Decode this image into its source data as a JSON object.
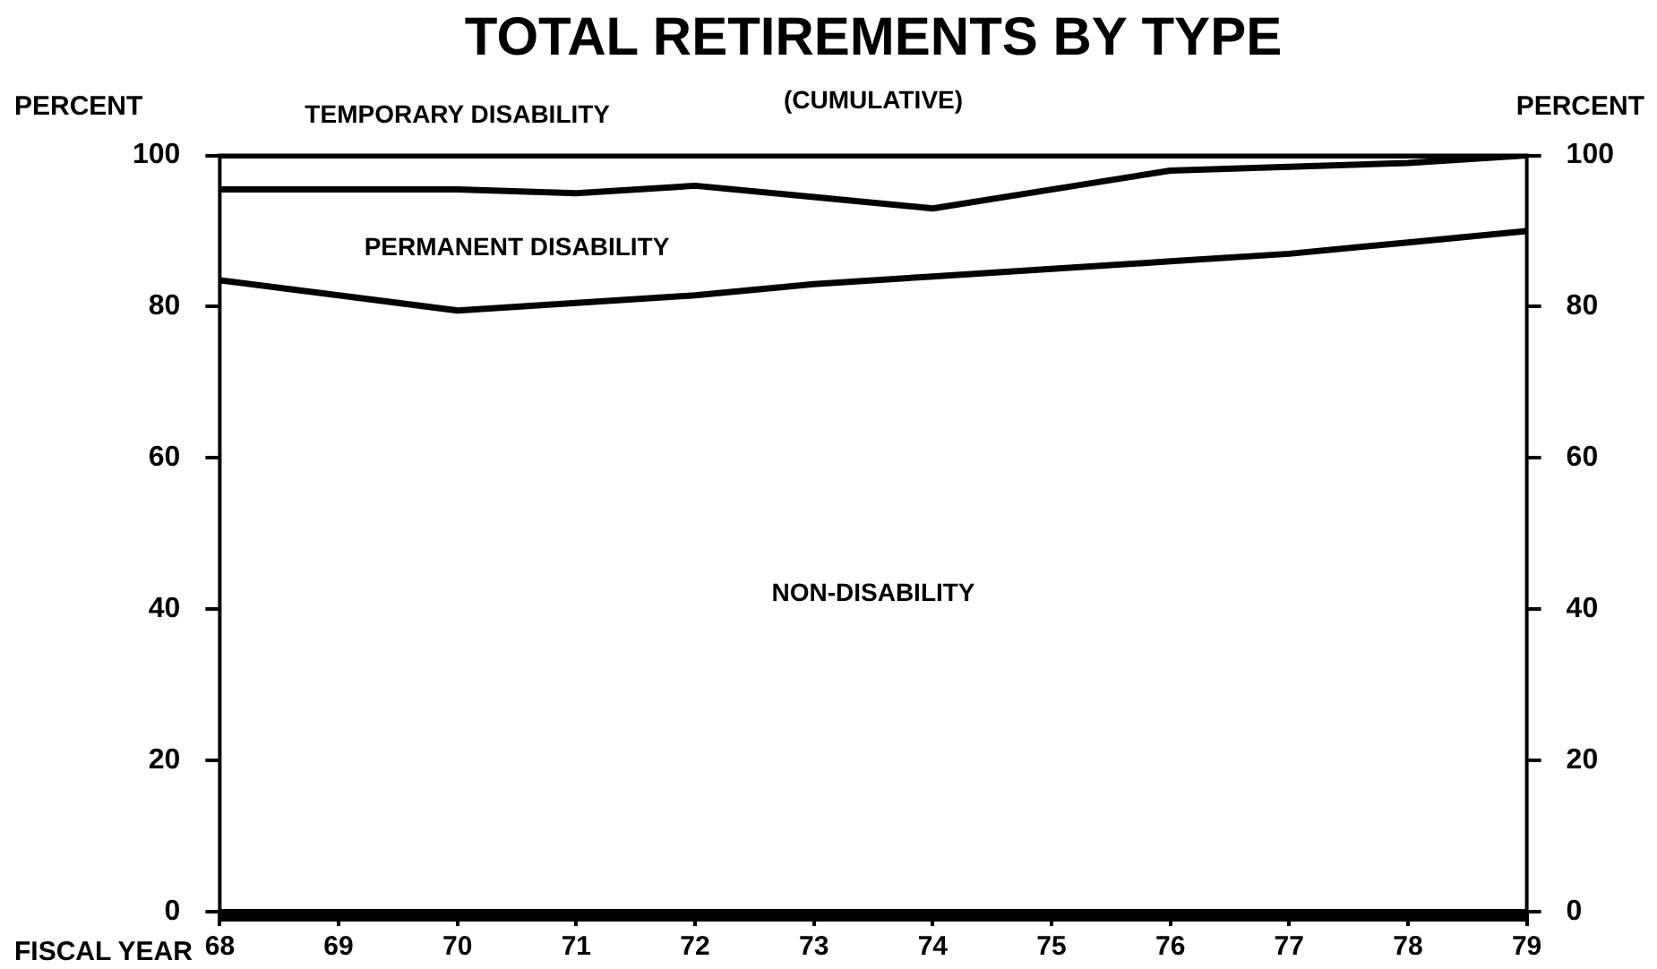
{
  "chart_data": {
    "type": "area",
    "title": "TOTAL RETIREMENTS BY TYPE",
    "subtitle": "(CUMULATIVE)",
    "xlabel": "FISCAL YEAR",
    "ylabel": "PERCENT",
    "y2label": "PERCENT",
    "categories": [
      "68",
      "69",
      "70",
      "71",
      "72",
      "73",
      "74",
      "75",
      "76",
      "77",
      "78",
      "79"
    ],
    "stacked": true,
    "series": [
      {
        "name": "NON-DISABILITY",
        "color": "#000000",
        "values": [
          83.5,
          81.5,
          79.5,
          80.5,
          81.5,
          83,
          84,
          85,
          86,
          87,
          88.5,
          90
        ]
      },
      {
        "name": "PERMANENT DISABILITY",
        "color": "#000000",
        "values": [
          12,
          14,
          16,
          14.5,
          14.5,
          11.5,
          9,
          10.5,
          12,
          11.5,
          10.5,
          10
        ]
      },
      {
        "name": "TEMPORARY DISABILITY",
        "color": "#000000",
        "values": [
          4.5,
          4.5,
          4.5,
          5,
          4,
          5.5,
          7,
          4.5,
          2,
          1.5,
          1,
          0
        ]
      }
    ],
    "ylim": [
      0,
      100
    ],
    "yticks": [
      0,
      20,
      40,
      60,
      80,
      100
    ],
    "y2lim": [
      0,
      100
    ],
    "y2ticks": [
      0,
      20,
      40,
      60,
      80,
      100
    ],
    "grid": false,
    "legend": false,
    "marker": "none",
    "line_style": "solid"
  }
}
